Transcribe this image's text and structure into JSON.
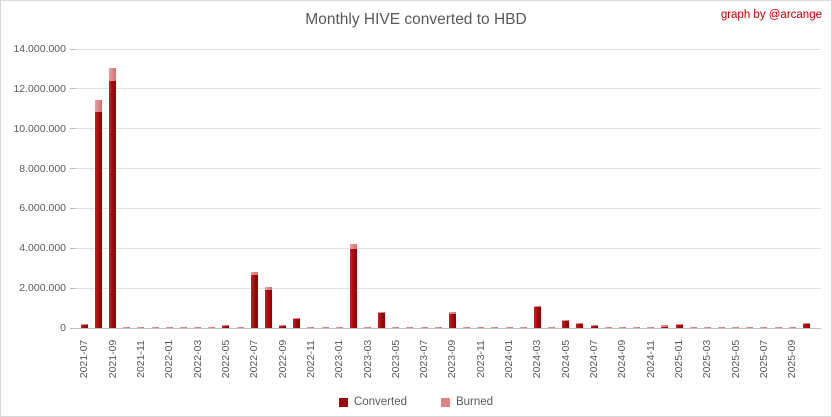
{
  "title": "Monthly HIVE converted to HBD",
  "watermark": "graph by @arcange",
  "colors": {
    "converted": "#9c0b0b",
    "burned": "#e08383",
    "text": "#595959",
    "watermark_red": "#c00000",
    "gridline": "#e2e2e2",
    "axis": "#bfbfbf"
  },
  "legend": {
    "converted_label": "Converted",
    "burned_label": "Burned"
  },
  "chart_data": {
    "type": "bar",
    "stacked": true,
    "title": "Monthly HIVE converted to HBD",
    "xlabel": "",
    "ylabel": "",
    "ylim": [
      0,
      14000000
    ],
    "grid": true,
    "legend_position": "bottom",
    "y_tick_labels": [
      "0",
      "2.000.000",
      "4.000.000",
      "6.000.000",
      "8.000.000",
      "10.000.000",
      "12.000.000",
      "14.000.000"
    ],
    "y_tick_values": [
      0,
      2000000,
      4000000,
      6000000,
      8000000,
      10000000,
      12000000,
      14000000
    ],
    "x_label_every": 2,
    "categories": [
      "2021-07",
      "2021-08",
      "2021-09",
      "2021-10",
      "2021-11",
      "2021-12",
      "2022-01",
      "2022-02",
      "2022-03",
      "2022-04",
      "2022-05",
      "2022-06",
      "2022-07",
      "2022-08",
      "2022-09",
      "2022-10",
      "2022-11",
      "2022-12",
      "2023-01",
      "2023-02",
      "2023-03",
      "2023-04",
      "2023-05",
      "2023-06",
      "2023-07",
      "2023-08",
      "2023-09",
      "2023-10",
      "2023-11",
      "2023-12",
      "2024-01",
      "2024-02",
      "2024-03",
      "2024-04",
      "2024-05",
      "2024-06",
      "2024-07",
      "2024-08",
      "2024-09",
      "2024-10",
      "2024-11",
      "2024-12",
      "2025-01",
      "2025-02",
      "2025-03",
      "2025-04",
      "2025-05",
      "2025-06",
      "2025-07",
      "2025-08",
      "2025-09",
      "2025-10"
    ],
    "series": [
      {
        "name": "Converted",
        "color": "#9c0b0b",
        "values": [
          130000,
          10850000,
          12420000,
          0,
          0,
          0,
          0,
          0,
          0,
          0,
          100000,
          0,
          2650000,
          1920000,
          100000,
          430000,
          0,
          0,
          0,
          3980000,
          0,
          730000,
          0,
          0,
          0,
          0,
          680000,
          0,
          0,
          0,
          0,
          0,
          1030000,
          0,
          330000,
          180000,
          80000,
          0,
          0,
          0,
          0,
          60000,
          150000,
          0,
          0,
          0,
          0,
          0,
          0,
          0,
          0,
          180000
        ]
      },
      {
        "name": "Burned",
        "color": "#e08383",
        "values": [
          30000,
          600000,
          650000,
          30000,
          30000,
          30000,
          30000,
          30000,
          30000,
          30000,
          30000,
          30000,
          150000,
          130000,
          30000,
          40000,
          30000,
          30000,
          30000,
          260000,
          30000,
          60000,
          30000,
          30000,
          30000,
          30000,
          100000,
          30000,
          30000,
          30000,
          30000,
          30000,
          100000,
          30000,
          50000,
          30000,
          20000,
          30000,
          30000,
          30000,
          30000,
          40000,
          30000,
          30000,
          30000,
          30000,
          30000,
          30000,
          30000,
          30000,
          30000,
          40000
        ]
      }
    ]
  }
}
